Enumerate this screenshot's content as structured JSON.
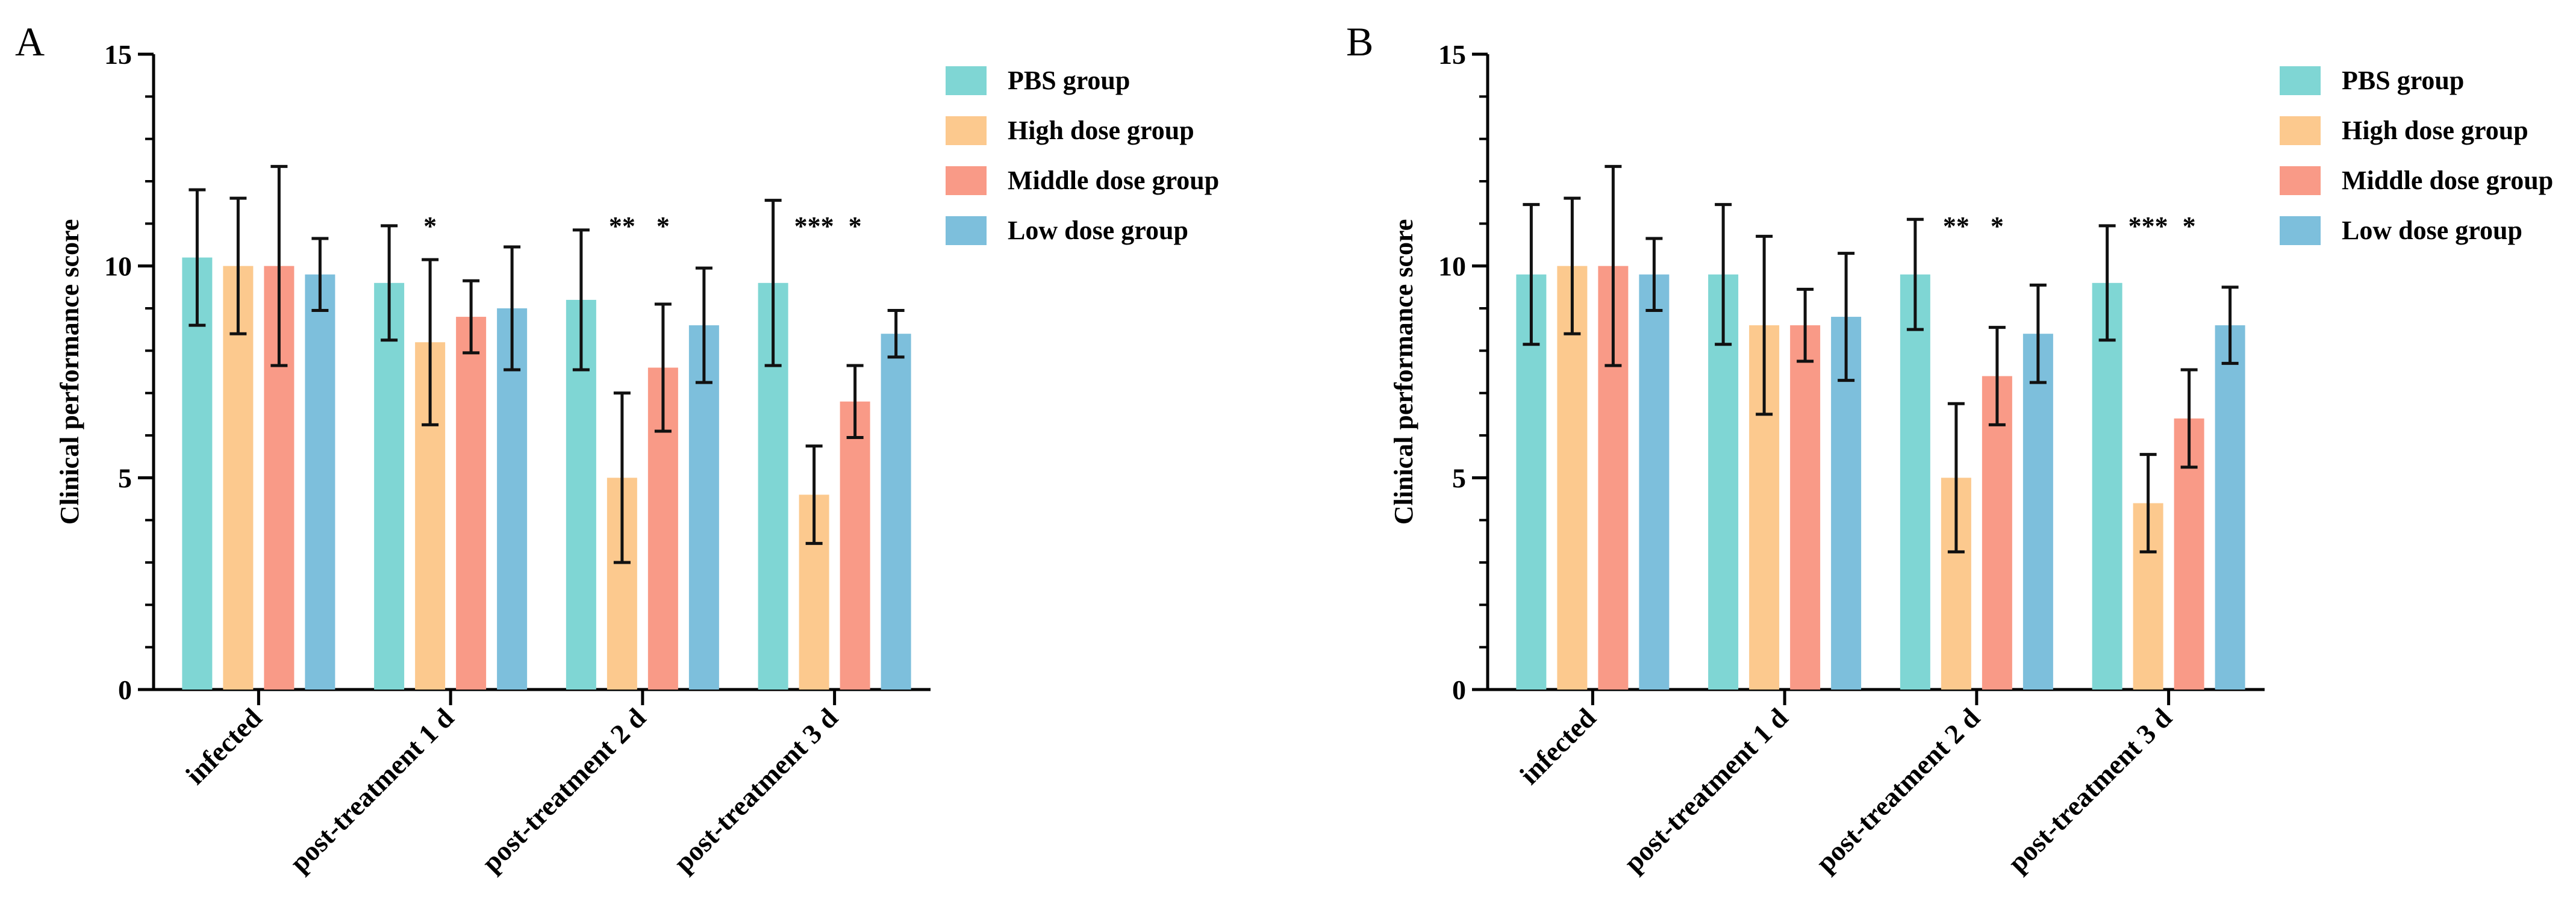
{
  "chart_data": [
    {
      "type": "bar",
      "panel": "A",
      "categories": [
        "infected",
        "post-treatment 1 d",
        "post-treatment 2 d",
        "post-treatment 3 d"
      ],
      "ylabel": "Clinical performance score",
      "xlabel": "",
      "ylim": [
        0,
        15
      ],
      "yticks": [
        0,
        5,
        10,
        15
      ],
      "grid": false,
      "legend_position": "top-right",
      "series": [
        {
          "name": "PBS group",
          "color": "#7fd6d4",
          "values": [
            10.2,
            9.6,
            9.2,
            9.6
          ],
          "errors": [
            1.6,
            1.35,
            1.65,
            1.95
          ]
        },
        {
          "name": "High dose group",
          "color": "#fcc98e",
          "values": [
            10.0,
            8.2,
            5.0,
            4.6
          ],
          "errors": [
            1.6,
            1.95,
            2.0,
            1.15
          ]
        },
        {
          "name": "Middle dose group",
          "color": "#f99a87",
          "values": [
            10.0,
            8.8,
            7.6,
            6.8
          ],
          "errors": [
            2.35,
            0.85,
            1.5,
            0.85
          ]
        },
        {
          "name": "Low dose group",
          "color": "#7dbfdc",
          "values": [
            9.8,
            9.0,
            8.6,
            8.4
          ],
          "errors": [
            0.85,
            1.45,
            1.35,
            0.55
          ]
        }
      ],
      "annotations": [
        {
          "category": 1,
          "series": 1,
          "text": "*"
        },
        {
          "category": 2,
          "series": 1,
          "text": "**"
        },
        {
          "category": 2,
          "series": 2,
          "text": "*"
        },
        {
          "category": 3,
          "series": 1,
          "text": "***"
        },
        {
          "category": 3,
          "series": 2,
          "text": "*"
        }
      ]
    },
    {
      "type": "bar",
      "panel": "B",
      "categories": [
        "infected",
        "post-treatment 1 d",
        "post-treatment 2 d",
        "post-treatment 3 d"
      ],
      "ylabel": "Clinical performance score",
      "xlabel": "",
      "ylim": [
        0,
        15
      ],
      "yticks": [
        0,
        5,
        10,
        15
      ],
      "grid": false,
      "legend_position": "top-right",
      "series": [
        {
          "name": "PBS group",
          "color": "#7fd6d4",
          "values": [
            9.8,
            9.8,
            9.8,
            9.6
          ],
          "errors": [
            1.65,
            1.65,
            1.3,
            1.35
          ]
        },
        {
          "name": "High dose group",
          "color": "#fcc98e",
          "values": [
            10.0,
            8.6,
            5.0,
            4.4
          ],
          "errors": [
            1.6,
            2.1,
            1.75,
            1.15
          ]
        },
        {
          "name": "Middle dose group",
          "color": "#f99a87",
          "values": [
            10.0,
            8.6,
            7.4,
            6.4
          ],
          "errors": [
            2.35,
            0.85,
            1.15,
            1.15
          ]
        },
        {
          "name": "Low dose group",
          "color": "#7dbfdc",
          "values": [
            9.8,
            8.8,
            8.4,
            8.6
          ],
          "errors": [
            0.85,
            1.5,
            1.15,
            0.9
          ]
        }
      ],
      "annotations": [
        {
          "category": 2,
          "series": 1,
          "text": "**"
        },
        {
          "category": 2,
          "series": 2,
          "text": "*"
        },
        {
          "category": 3,
          "series": 1,
          "text": "***"
        },
        {
          "category": 3,
          "series": 2,
          "text": "*"
        }
      ]
    }
  ]
}
